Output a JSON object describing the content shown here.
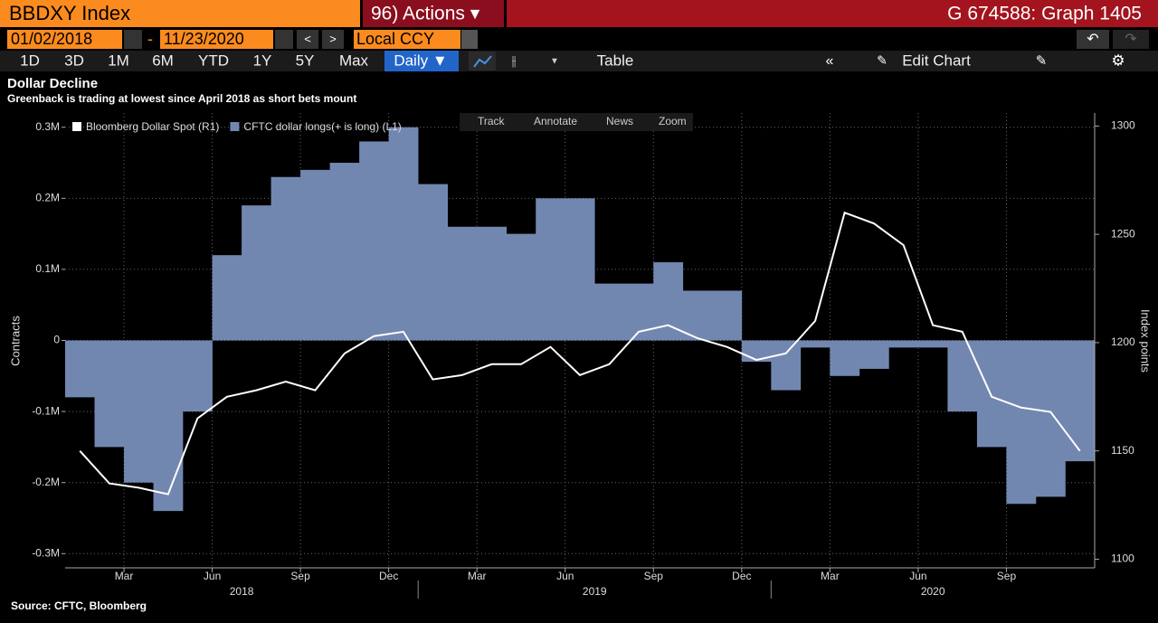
{
  "header": {
    "ticker": "BBDXY Index",
    "actions": "96) Actions ▾",
    "page": "G 674588: Graph 1405"
  },
  "controls": {
    "start_date": "01/02/2018",
    "dash": "-",
    "end_date": "11/23/2020",
    "currency": "Local CCY"
  },
  "toolbar": [
    "1D",
    "3D",
    "1M",
    "6M",
    "YTD",
    "1Y",
    "5Y",
    "Max",
    "Daily ▼",
    "Table",
    "Edit Chart"
  ],
  "chart_tools": [
    "Track",
    "Annotate",
    "News",
    "Zoom"
  ],
  "chart_data": {
    "type": "bar",
    "title": "Dollar Decline",
    "subtitle": "Greenback is trading at lowest since April 2018 as short bets mount",
    "source": "Source: CFTC, Bloomberg",
    "ylabel": "Contracts",
    "y2label": "Index points",
    "x": [
      "2018-01",
      "2018-02",
      "2018-03",
      "2018-04",
      "2018-05",
      "2018-06",
      "2018-07",
      "2018-08",
      "2018-09",
      "2018-10",
      "2018-11",
      "2018-12",
      "2019-01",
      "2019-02",
      "2019-03",
      "2019-04",
      "2019-05",
      "2019-06",
      "2019-07",
      "2019-08",
      "2019-09",
      "2019-10",
      "2019-11",
      "2019-12",
      "2020-01",
      "2020-02",
      "2020-03",
      "2020-04",
      "2020-05",
      "2020-06",
      "2020-07",
      "2020-08",
      "2020-09",
      "2020-10",
      "2020-11"
    ],
    "xticks": [
      {
        "value": "2018-03",
        "label": "Mar"
      },
      {
        "value": "2018-06",
        "label": "Jun"
      },
      {
        "value": "2018-09",
        "label": "Sep"
      },
      {
        "value": "2018-12",
        "label": "Dec"
      },
      {
        "value": "2019-03",
        "label": "Mar"
      },
      {
        "value": "2019-06",
        "label": "Jun"
      },
      {
        "value": "2019-09",
        "label": "Sep"
      },
      {
        "value": "2019-12",
        "label": "Dec"
      },
      {
        "value": "2020-03",
        "label": "Mar"
      },
      {
        "value": "2020-06",
        "label": "Jun"
      },
      {
        "value": "2020-09",
        "label": "Sep"
      }
    ],
    "years": [
      "2018",
      "2019",
      "2020"
    ],
    "ylim": [
      -320000,
      320000
    ],
    "yticks": [
      {
        "value": -300000,
        "label": "-0.3M"
      },
      {
        "value": -200000,
        "label": "-0.2M"
      },
      {
        "value": -100000,
        "label": "-0.1M"
      },
      0,
      {
        "value": 100000,
        "label": "0.1M"
      },
      {
        "value": 200000,
        "label": "0.2M"
      },
      {
        "value": 300000,
        "label": "0.3M"
      }
    ],
    "y2lim": [
      1096,
      1306
    ],
    "y2ticks": [
      1100,
      1150,
      1200,
      1250,
      1300
    ],
    "grid": true,
    "legend": "top-left",
    "series": [
      {
        "name": "Bloomberg Dollar Spot (R1)",
        "type": "line",
        "axis": "y2",
        "color": "#ffffff",
        "values": [
          1150,
          1135,
          1133,
          1130,
          1165,
          1175,
          1178,
          1182,
          1178,
          1195,
          1203,
          1205,
          1183,
          1185,
          1190,
          1190,
          1198,
          1185,
          1190,
          1205,
          1208,
          1202,
          1198,
          1192,
          1195,
          1210,
          1260,
          1255,
          1245,
          1208,
          1205,
          1175,
          1170,
          1168,
          1150
        ]
      },
      {
        "name": "CFTC dollar longs(+ is long) (L1)",
        "type": "bar",
        "color": "#7287b0",
        "values": [
          -80000,
          -150000,
          -200000,
          -240000,
          -100000,
          120000,
          190000,
          230000,
          240000,
          250000,
          280000,
          300000,
          220000,
          160000,
          160000,
          150000,
          200000,
          200000,
          80000,
          80000,
          110000,
          70000,
          70000,
          -30000,
          -70000,
          -10000,
          -50000,
          -40000,
          -10000,
          -10000,
          -100000,
          -150000,
          -230000,
          -220000,
          -170000
        ]
      }
    ]
  }
}
